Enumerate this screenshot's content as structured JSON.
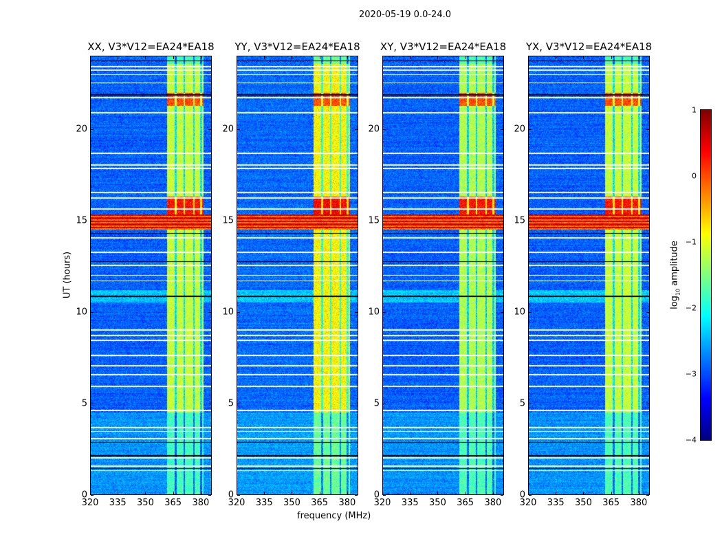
{
  "figure_title": "2020-05-19 0.0-24.0",
  "chart_data": {
    "type": "heatmap",
    "xlabel": "frequency (MHz)",
    "ylabel": "UT (hours)",
    "xlim": [
      320,
      386
    ],
    "ylim": [
      0,
      24
    ],
    "xticks": [
      320,
      335,
      350,
      365,
      380
    ],
    "yticks": [
      0,
      5,
      10,
      15,
      20
    ],
    "colorbar": {
      "label_main": "log",
      "label_sub": "10",
      "label_rest": " amplitude",
      "range": [
        -4,
        1
      ],
      "ticks": [
        1,
        0,
        -1,
        -2,
        -3,
        -4
      ],
      "tick_labels": [
        "1",
        "0",
        "−1",
        "−2",
        "−3",
        "−4"
      ],
      "colormap": "jet"
    },
    "panels": [
      {
        "title": "XX, V3*V12=EA24*EA18",
        "background": -2.9,
        "band_upper": -1.15,
        "band_lower": -1.8,
        "band_red": 0.3
      },
      {
        "title": "YY, V3*V12=EA24*EA18",
        "background": -2.85,
        "band_upper": -0.85,
        "band_lower": -1.6,
        "band_red": 0.4
      },
      {
        "title": "XY, V3*V12=EA24*EA18",
        "background": -2.9,
        "band_upper": -1.25,
        "band_lower": -1.75,
        "band_red": 0.3
      },
      {
        "title": "YX, V3*V12=EA24*EA18",
        "background": -2.9,
        "band_upper": -1.15,
        "band_lower": -1.75,
        "band_red": 0.3
      }
    ],
    "rfi_band_mhz": [
      362,
      382
    ],
    "band_gaps_mhz": [
      366.6,
      371.2,
      376.5,
      380.5
    ],
    "band_bright_hours": [
      4.5,
      23.6
    ],
    "broadband_rfi_hours": [
      14.5,
      15.35
    ],
    "broadband_rfi_level": 0.1,
    "band_red_hours": [
      15.35,
      16.3
    ],
    "flagged_hours_white": [
      23.45,
      23.25,
      23.0,
      22.55,
      21.75,
      20.9,
      18.7,
      18.05,
      17.85,
      16.55,
      16.25,
      15.65,
      14.05,
      13.25,
      12.55,
      12.0,
      11.7,
      9.0,
      8.7,
      8.45,
      7.6,
      7.05,
      6.55,
      5.9,
      4.6,
      3.65,
      3.45,
      3.05,
      2.0,
      1.55,
      1.3
    ],
    "flagged_hours_black": [
      23.75,
      21.9,
      14.3,
      12.75,
      10.85,
      2.1,
      1.42,
      2.85
    ]
  }
}
